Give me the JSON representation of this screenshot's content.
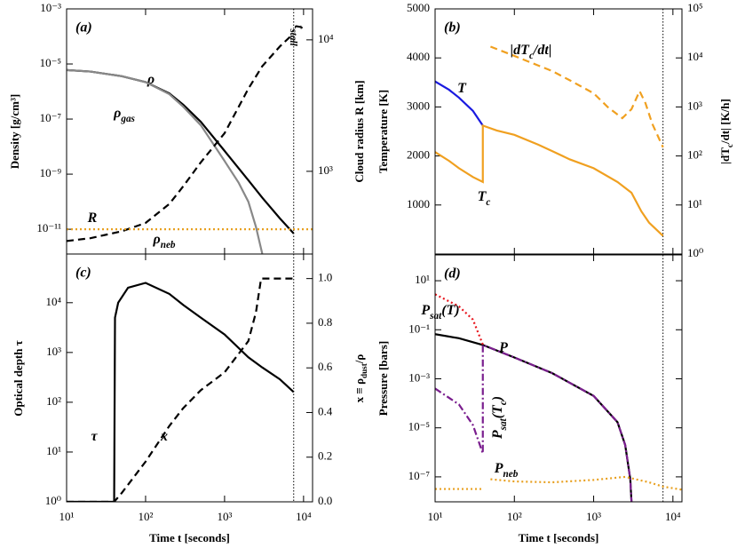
{
  "chart_data": [
    {
      "type": "line",
      "label": "(a)",
      "xscale": "log",
      "xlim": [
        10,
        13000
      ],
      "xticks": [
        10,
        100,
        1000,
        10000
      ],
      "yscale": "log",
      "ylim": [
        1.26e-12,
        0.001
      ],
      "ylabel": "Density [g/cm³]",
      "yticks": [
        {
          "value": 1e-11,
          "label": "10⁻¹¹"
        },
        {
          "value": 1e-09,
          "label": "10⁻⁹"
        },
        {
          "value": 1e-07,
          "label": "10⁻⁷"
        },
        {
          "value": 1e-05,
          "label": "10⁻⁵"
        },
        {
          "value": 0.001,
          "label": "10⁻³"
        }
      ],
      "y2scale": "log",
      "y2lim": [
        235,
        17200
      ],
      "y2label": "Cloud radius R [km]",
      "y2ticks": [
        {
          "value": 1000,
          "label": "10³"
        },
        {
          "value": 10000,
          "label": "10⁴"
        }
      ],
      "vline": 7500,
      "vline_label": [
        "t",
        "stall"
      ],
      "series": [
        {
          "name": [
            "ρ"
          ],
          "color": "#000000",
          "style": "solid",
          "x": [
            10,
            20,
            50,
            100,
            200,
            300,
            500,
            1000,
            2000,
            3000,
            5000,
            7500
          ],
          "values": [
            6e-06,
            5.3e-06,
            3.6e-06,
            2.2e-06,
            8.5e-07,
            3.3e-07,
            8e-08,
            7e-09,
            6e-10,
            1.4e-10,
            2.5e-11,
            7e-12
          ]
        },
        {
          "name": [
            "ρ",
            "gas"
          ],
          "color": "#888888",
          "style": "solid",
          "x": [
            10,
            20,
            50,
            100,
            200,
            300,
            500,
            1000,
            1500,
            2000,
            2500,
            2800,
            3000
          ],
          "values": [
            6e-06,
            5.3e-06,
            3.6e-06,
            2.2e-06,
            8e-07,
            2.8e-07,
            6e-08,
            3e-09,
            5e-10,
            1e-10,
            1.2e-11,
            3e-12,
            1.3e-12
          ]
        },
        {
          "name": [
            "R"
          ],
          "color": "#000000",
          "style": "dashed",
          "axis": "y2",
          "x": [
            10,
            20,
            50,
            100,
            200,
            300,
            500,
            1000,
            2000,
            3000,
            5000,
            7500
          ],
          "values": [
            295,
            310,
            350,
            405,
            565,
            770,
            1170,
            1950,
            4250,
            6300,
            8900,
            11200
          ]
        },
        {
          "name": [
            "ρ",
            "neb"
          ],
          "color": "#e8a020",
          "style": "dotted",
          "x": [
            10,
            13000
          ],
          "values": [
            1e-11,
            1e-11
          ]
        }
      ]
    },
    {
      "type": "line",
      "label": "(b)",
      "xscale": "log",
      "xlim": [
        10,
        13000
      ],
      "xticks": [
        10,
        100,
        1000,
        10000
      ],
      "yscale": "linear",
      "ylim": [
        0,
        5000
      ],
      "ylabel": "Temperature [K]",
      "yticks": [
        1000,
        2000,
        3000,
        4000,
        5000
      ],
      "y2scale": "log",
      "y2lim": [
        1,
        100000
      ],
      "y2label": [
        "|dT",
        "c",
        "/dt|  [K/h]"
      ],
      "y2ticks": [
        {
          "value": 1,
          "label": "10⁰"
        },
        {
          "value": 10,
          "label": "10¹"
        },
        {
          "value": 100,
          "label": "10²"
        },
        {
          "value": 1000,
          "label": "10³"
        },
        {
          "value": 10000,
          "label": "10⁴"
        },
        {
          "value": 100000,
          "label": "10⁵"
        }
      ],
      "vline": 7500,
      "series": [
        {
          "name": [
            "T"
          ],
          "color": "#1a1ae0",
          "style": "solid",
          "x": [
            10,
            15,
            20,
            30,
            40
          ],
          "values": [
            3520,
            3350,
            3190,
            2920,
            2620
          ]
        },
        {
          "name": [
            "T",
            "c"
          ],
          "color": "#f0a020",
          "style": "solid",
          "x": [
            10,
            15,
            20,
            30,
            40,
            40,
            60,
            100,
            200,
            300,
            500,
            1000,
            2000,
            3000,
            4000,
            5000,
            7500
          ],
          "values": [
            2080,
            1900,
            1750,
            1570,
            1470,
            2620,
            2520,
            2430,
            2230,
            2100,
            1930,
            1750,
            1470,
            1250,
            870,
            640,
            370
          ]
        },
        {
          "name": [
            "|dT",
            "c",
            "/dt|"
          ],
          "color": "#f0a020",
          "style": "dashed",
          "axis": "y2",
          "x": [
            50,
            100,
            200,
            300,
            500,
            1000,
            1500,
            2300,
            3000,
            3800,
            4500,
            5500,
            7500
          ],
          "values": [
            17000,
            11000,
            7000,
            5400,
            3500,
            1900,
            1000,
            590,
            900,
            2100,
            1200,
            450,
            150
          ]
        }
      ]
    },
    {
      "type": "line",
      "label": "(c)",
      "xscale": "log",
      "xlim": [
        10,
        13000
      ],
      "xlabel": "Time t [seconds]",
      "xticks": [
        {
          "value": 10,
          "label": "10¹"
        },
        {
          "value": 100,
          "label": "10²"
        },
        {
          "value": 1000,
          "label": "10³"
        },
        {
          "value": 10000,
          "label": "10⁴"
        }
      ],
      "yscale": "log",
      "ylim": [
        1,
        95000
      ],
      "ylabel": "Optical depth τ",
      "yticks": [
        {
          "value": 1,
          "label": "10⁰"
        },
        {
          "value": 10,
          "label": "10¹"
        },
        {
          "value": 100,
          "label": "10²"
        },
        {
          "value": 1000,
          "label": "10³"
        },
        {
          "value": 10000,
          "label": "10⁴"
        }
      ],
      "y2scale": "linear",
      "y2lim": [
        0,
        1.11
      ],
      "y2label": [
        "x ≡ ρ",
        "dust",
        "/ρ"
      ],
      "y2ticks": [
        {
          "value": 0,
          "label": "0.0"
        },
        0.2,
        0.4,
        0.6,
        0.8,
        {
          "value": 1,
          "label": "1.0"
        }
      ],
      "vline": 7500,
      "series": [
        {
          "name": [
            "τ"
          ],
          "color": "#000000",
          "style": "solid",
          "x": [
            10,
            40,
            40,
            41,
            45,
            60,
            100,
            200,
            300,
            500,
            1000,
            2000,
            3000,
            5000,
            7500
          ],
          "values": [
            1,
            1,
            1,
            5000,
            10000,
            20000,
            25000,
            15000,
            9000,
            5000,
            2300,
            800,
            500,
            290,
            160
          ]
        },
        {
          "name": [
            "x"
          ],
          "color": "#000000",
          "style": "dashed",
          "axis": "y2",
          "x": [
            10,
            40,
            50,
            100,
            200,
            300,
            500,
            1000,
            2000,
            2500,
            2900,
            7500
          ],
          "values": [
            0,
            0,
            0.04,
            0.18,
            0.34,
            0.42,
            0.5,
            0.58,
            0.72,
            0.85,
            1,
            1
          ]
        }
      ]
    },
    {
      "type": "line",
      "label": "(d)",
      "xscale": "log",
      "xlim": [
        10,
        13000
      ],
      "xlabel": "Time t [seconds]",
      "xticks": [
        {
          "value": 10,
          "label": "10¹"
        },
        {
          "value": 100,
          "label": "10²"
        },
        {
          "value": 1000,
          "label": "10³"
        },
        {
          "value": 10000,
          "label": "10⁴"
        }
      ],
      "yscale": "log",
      "ylim": [
        9.6e-09,
        113
      ],
      "ylabel": "Pressure [bars]",
      "yticks": [
        {
          "value": 1e-07,
          "label": "10⁻⁷"
        },
        {
          "value": 1e-05,
          "label": "10⁻⁵"
        },
        {
          "value": 0.001,
          "label": "10⁻³"
        },
        {
          "value": 0.1,
          "label": "10⁻¹"
        },
        {
          "value": 10,
          "label": "10¹"
        }
      ],
      "vline": 7500,
      "series": [
        {
          "name": [
            "P"
          ],
          "color": "#000000",
          "style": "solid",
          "x": [
            10,
            20,
            40,
            100,
            300,
            1000,
            2000,
            2500,
            2900,
            3000
          ],
          "values": [
            0.066,
            0.045,
            0.024,
            0.0074,
            0.0017,
            0.0002,
            1.7e-05,
            2e-06,
            8e-08,
            1e-08
          ]
        },
        {
          "name": [
            "P",
            "sat",
            "(T)"
          ],
          "color": "#e8141c",
          "style": "dotted",
          "x": [
            10,
            20,
            30,
            40
          ],
          "values": [
            2.8,
            0.9,
            0.26,
            0.025
          ]
        },
        {
          "name": [
            "P",
            "sat",
            "(T",
            "c",
            ")"
          ],
          "color": "#7a1e8e",
          "style": "dashdot",
          "x": [
            10,
            20,
            30,
            40,
            40,
            100,
            300,
            1000,
            2000,
            2500,
            2900,
            3000
          ],
          "values": [
            0.0004,
            9e-05,
            1.3e-05,
            9e-07,
            0.024,
            0.0074,
            0.0017,
            0.0002,
            1.7e-05,
            2e-06,
            8e-08,
            1e-08
          ]
        },
        {
          "name": [
            "P",
            "neb"
          ],
          "color": "#e8a020",
          "style": "dotted",
          "x": [
            10,
            40,
            40,
            50,
            100,
            300,
            1000,
            2500,
            5000,
            7500,
            13000
          ],
          "values": [
            3.2e-08,
            3.2e-08,
            null,
            8e-08,
            6.5e-08,
            6e-08,
            7.5e-08,
            1e-07,
            6e-08,
            4e-08,
            3e-08
          ]
        }
      ]
    }
  ]
}
